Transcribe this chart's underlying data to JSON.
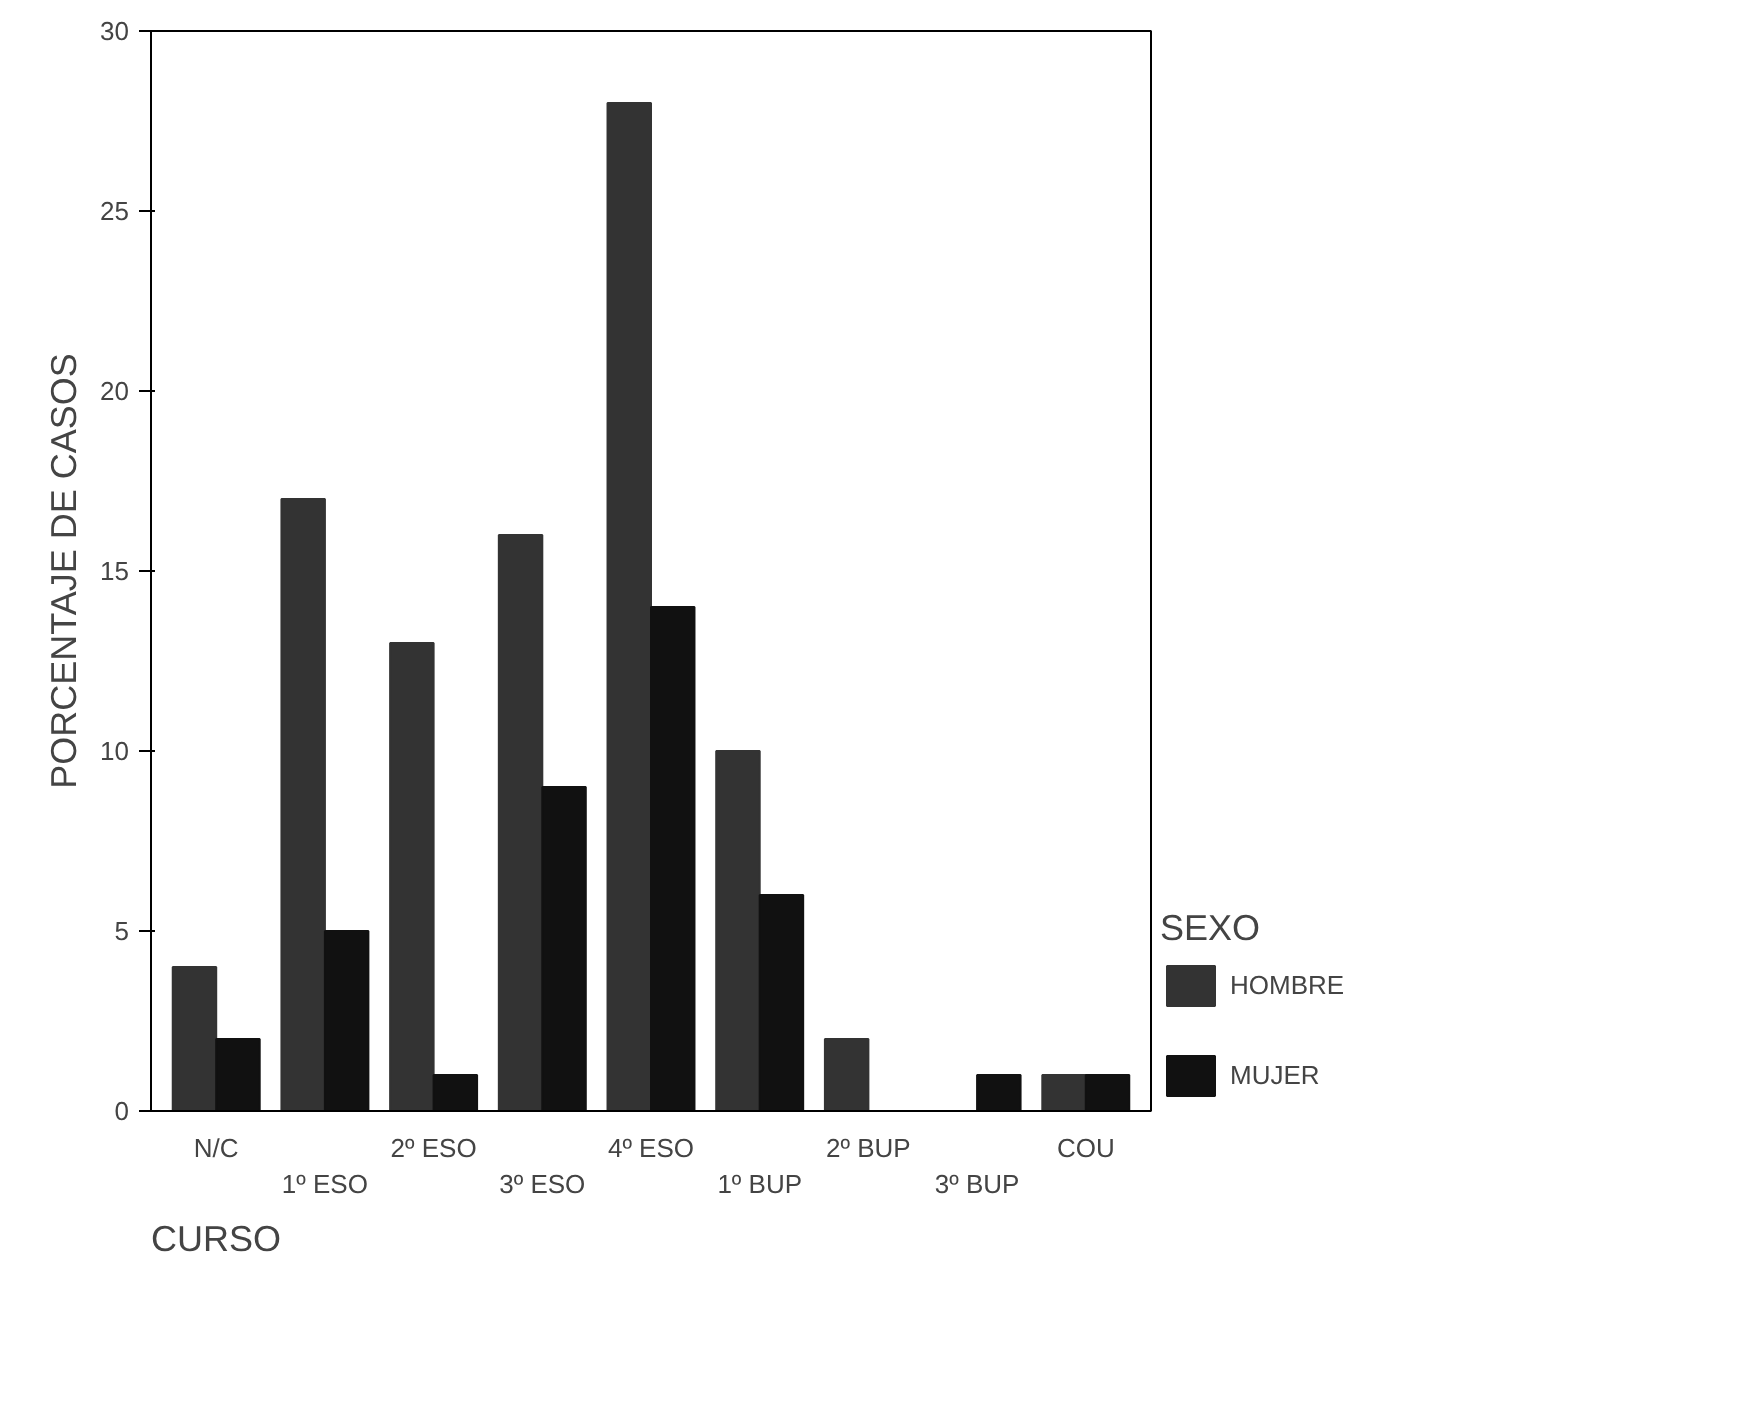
{
  "chart_data": {
    "type": "bar",
    "xlabel": "CURSO",
    "ylabel": "PORCENTAJE DE CASOS",
    "legend_title": "SEXO",
    "categories": [
      "N/C",
      "1º ESO",
      "2º ESO",
      "3º ESO",
      "4º ESO",
      "1º BUP",
      "2º BUP",
      "3º BUP",
      "COU"
    ],
    "series": [
      {
        "name": "HOMBRE",
        "color": "#333333",
        "values": [
          4,
          17,
          13,
          16,
          28,
          10,
          2,
          0,
          1
        ]
      },
      {
        "name": "MUJER",
        "color": "#111111",
        "values": [
          2,
          5,
          1,
          9,
          14,
          6,
          0,
          1,
          1
        ]
      }
    ],
    "ylim": [
      0,
      30
    ],
    "yticks": [
      0,
      5,
      10,
      15,
      20,
      25,
      30
    ],
    "grid": false,
    "legend": "right"
  }
}
